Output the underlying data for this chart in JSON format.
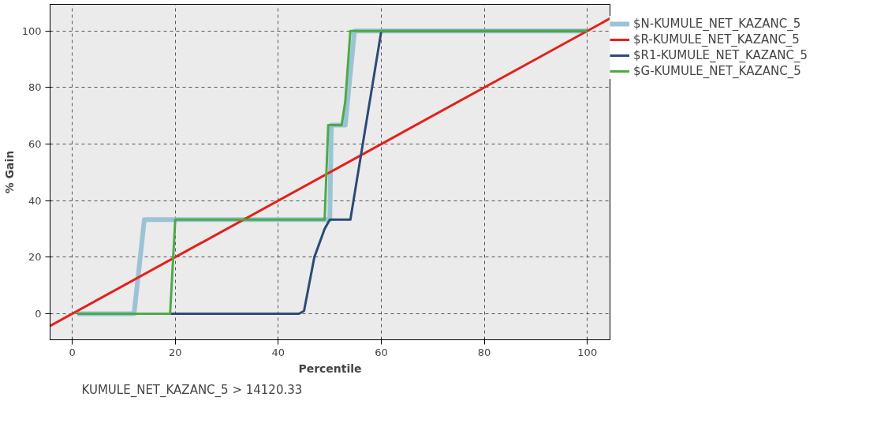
{
  "chart_data": {
    "type": "line",
    "xlabel": "Percentile",
    "ylabel": "% Gain",
    "annotations": [
      "KUMULE_NET_KAZANC_5 > 14120.33"
    ],
    "xlim": [
      -4.3,
      104.4
    ],
    "ylim": [
      -9.2,
      109.4
    ],
    "xticks": [
      0,
      20,
      40,
      60,
      80,
      100
    ],
    "yticks": [
      0,
      20,
      40,
      60,
      80,
      100
    ],
    "grid": true,
    "legend": "top right",
    "line_style": "solid",
    "series": [
      {
        "name": "$N-KUMULE_NET_KAZANC_5",
        "color": "#9cc3d5",
        "x": [
          1,
          12,
          14,
          50,
          50.3,
          53,
          54.8,
          100
        ],
        "values": [
          0,
          0,
          33.3,
          33.3,
          66.7,
          66.7,
          100,
          100
        ]
      },
      {
        "name": "$R-KUMULE_NET_KAZANC_5",
        "color": "#e3211c",
        "x": [
          -4.3,
          104.4
        ],
        "values": [
          -4.3,
          104.4
        ]
      },
      {
        "name": "$R1-KUMULE_NET_KAZANC_5",
        "color": "#2d4a78",
        "x": [
          1,
          44,
          45,
          47,
          49,
          50,
          54,
          60,
          100
        ],
        "values": [
          0,
          0,
          1,
          20,
          30,
          33.3,
          33.3,
          100,
          100
        ]
      },
      {
        "name": "$G-KUMULE_NET_KAZANC_5",
        "color": "#4daa48",
        "x": [
          1,
          19,
          20,
          49,
          49.7,
          52.3,
          53,
          54,
          100
        ],
        "values": [
          0,
          0,
          33.3,
          33.3,
          66.7,
          66.7,
          75,
          100,
          100
        ]
      }
    ]
  }
}
